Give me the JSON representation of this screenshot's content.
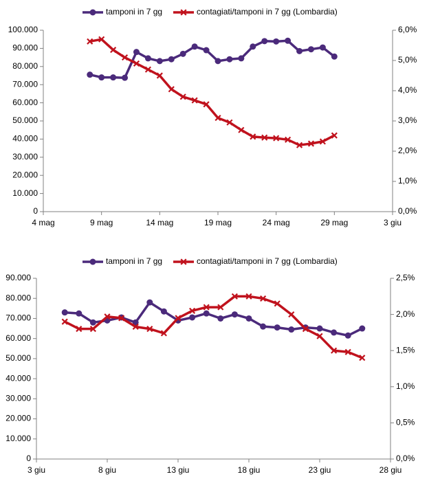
{
  "chart_data": [
    {
      "type": "line",
      "legend": [
        "tamponi in 7 gg",
        "contagiati/tamponi in 7 gg (Lombardia)"
      ],
      "legend_position": "top",
      "grid": false,
      "x_ticks": [
        "4 mag",
        "9 mag",
        "14 mag",
        "19 mag",
        "24 mag",
        "29 mag",
        "3 giu"
      ],
      "y_ticks": [
        "0",
        "10.000",
        "20.000",
        "30.000",
        "40.000",
        "50.000",
        "60.000",
        "70.000",
        "80.000",
        "90.000",
        "100.000"
      ],
      "y2_ticks": [
        "0,0%",
        "1,0%",
        "2,0%",
        "3,0%",
        "4,0%",
        "5,0%",
        "6,0%"
      ],
      "xlim": [
        4,
        34
      ],
      "ylim": [
        0,
        100000
      ],
      "y2lim": [
        0,
        6
      ],
      "series": [
        {
          "name": "tamponi in 7 gg",
          "color": "#4b2a7b",
          "marker": "circle",
          "axis": "left",
          "x": [
            8,
            9,
            10,
            11,
            12,
            13,
            14,
            15,
            16,
            17,
            18,
            19,
            20,
            21,
            22,
            23,
            24,
            25,
            26,
            27,
            28,
            29
          ],
          "values": [
            75500,
            74000,
            74000,
            73800,
            88000,
            84500,
            83000,
            84000,
            87000,
            91000,
            89000,
            83000,
            84000,
            84500,
            91000,
            94000,
            93800,
            94200,
            88500,
            89500,
            90500,
            85500
          ]
        },
        {
          "name": "contagiati/tamponi in 7 gg (Lombardia)",
          "color": "#c0121d",
          "marker": "x",
          "axis": "right",
          "x": [
            8,
            9,
            10,
            11,
            12,
            13,
            14,
            15,
            16,
            17,
            18,
            19,
            20,
            21,
            22,
            23,
            24,
            25,
            26,
            27,
            28,
            29
          ],
          "values": [
            5.63,
            5.7,
            5.35,
            5.1,
            4.9,
            4.7,
            4.5,
            4.05,
            3.8,
            3.68,
            3.55,
            3.1,
            2.95,
            2.7,
            2.48,
            2.45,
            2.43,
            2.38,
            2.2,
            2.25,
            2.32,
            2.52
          ]
        }
      ]
    },
    {
      "type": "line",
      "legend": [
        "tamponi in 7 gg",
        "contagiati/tamponi in 7 gg (Lombardia)"
      ],
      "legend_position": "top",
      "grid": false,
      "x_ticks": [
        "3 giu",
        "8 giu",
        "13 giu",
        "18 giu",
        "23 giu",
        "28 giu"
      ],
      "y_ticks": [
        "0",
        "10.000",
        "20.000",
        "30.000",
        "40.000",
        "50.000",
        "60.000",
        "70.000",
        "80.000",
        "90.000"
      ],
      "y2_ticks": [
        "0,0%",
        "0,5%",
        "1,0%",
        "1,5%",
        "2,0%",
        "2,5%"
      ],
      "xlim": [
        3,
        28
      ],
      "ylim": [
        0,
        90000
      ],
      "y2lim": [
        0,
        2.5
      ],
      "series": [
        {
          "name": "tamponi in 7 gg",
          "color": "#4b2a7b",
          "marker": "circle",
          "axis": "left",
          "x": [
            5,
            6,
            7,
            8,
            9,
            10,
            11,
            12,
            13,
            14,
            15,
            16,
            17,
            18,
            19,
            20,
            21,
            22,
            23,
            24,
            25,
            26
          ],
          "values": [
            73000,
            72500,
            68000,
            69000,
            70500,
            68000,
            78000,
            73500,
            69000,
            70500,
            72500,
            70000,
            72000,
            70000,
            66000,
            65500,
            64500,
            65500,
            65000,
            63000,
            61500,
            65000
          ]
        },
        {
          "name": "contagiati/tamponi in 7 gg (Lombardia)",
          "color": "#c0121d",
          "marker": "x",
          "axis": "right",
          "x": [
            5,
            6,
            7,
            8,
            9,
            10,
            11,
            12,
            13,
            14,
            15,
            16,
            17,
            18,
            19,
            20,
            21,
            22,
            23,
            24,
            25,
            26
          ],
          "values": [
            1.9,
            1.8,
            1.8,
            1.97,
            1.95,
            1.83,
            1.8,
            1.74,
            1.95,
            2.05,
            2.1,
            2.1,
            2.25,
            2.25,
            2.22,
            2.15,
            2.0,
            1.8,
            1.7,
            1.5,
            1.48,
            1.4
          ]
        }
      ]
    }
  ]
}
